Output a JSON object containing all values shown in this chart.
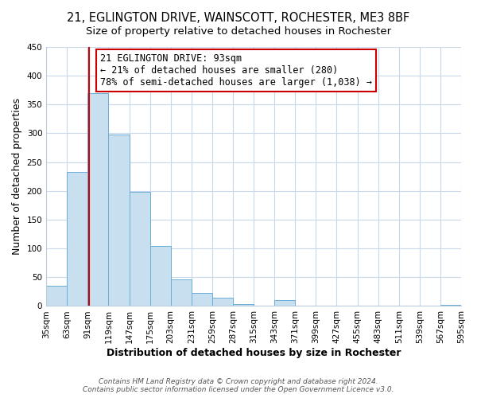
{
  "title": "21, EGLINGTON DRIVE, WAINSCOTT, ROCHESTER, ME3 8BF",
  "subtitle": "Size of property relative to detached houses in Rochester",
  "xlabel": "Distribution of detached houses by size in Rochester",
  "ylabel": "Number of detached properties",
  "bar_edges": [
    35,
    63,
    91,
    119,
    147,
    175,
    203,
    231,
    259,
    287,
    315,
    343,
    371,
    399,
    427,
    455,
    483,
    511,
    539,
    567,
    595
  ],
  "bar_heights": [
    35,
    233,
    370,
    298,
    199,
    105,
    46,
    23,
    15,
    4,
    0,
    10,
    1,
    0,
    0,
    0,
    0,
    0,
    0,
    2
  ],
  "bar_color": "#c8dff0",
  "bar_edge_color": "#6aaed6",
  "property_line_x": 93,
  "property_line_color": "#cc0000",
  "annotation_line1": "21 EGLINGTON DRIVE: 93sqm",
  "annotation_line2": "← 21% of detached houses are smaller (280)",
  "annotation_line3": "78% of semi-detached houses are larger (1,038) →",
  "ylim": [
    0,
    450
  ],
  "yticks": [
    0,
    50,
    100,
    150,
    200,
    250,
    300,
    350,
    400,
    450
  ],
  "tick_labels": [
    "35sqm",
    "63sqm",
    "91sqm",
    "119sqm",
    "147sqm",
    "175sqm",
    "203sqm",
    "231sqm",
    "259sqm",
    "287sqm",
    "315sqm",
    "343sqm",
    "371sqm",
    "399sqm",
    "427sqm",
    "455sqm",
    "483sqm",
    "511sqm",
    "539sqm",
    "567sqm",
    "595sqm"
  ],
  "footer_line1": "Contains HM Land Registry data © Crown copyright and database right 2024.",
  "footer_line2": "Contains public sector information licensed under the Open Government Licence v3.0.",
  "background_color": "#ffffff",
  "grid_color": "#c8d8e8",
  "title_fontsize": 10.5,
  "subtitle_fontsize": 9.5,
  "axis_label_fontsize": 9,
  "tick_fontsize": 7.5,
  "footer_fontsize": 6.5
}
